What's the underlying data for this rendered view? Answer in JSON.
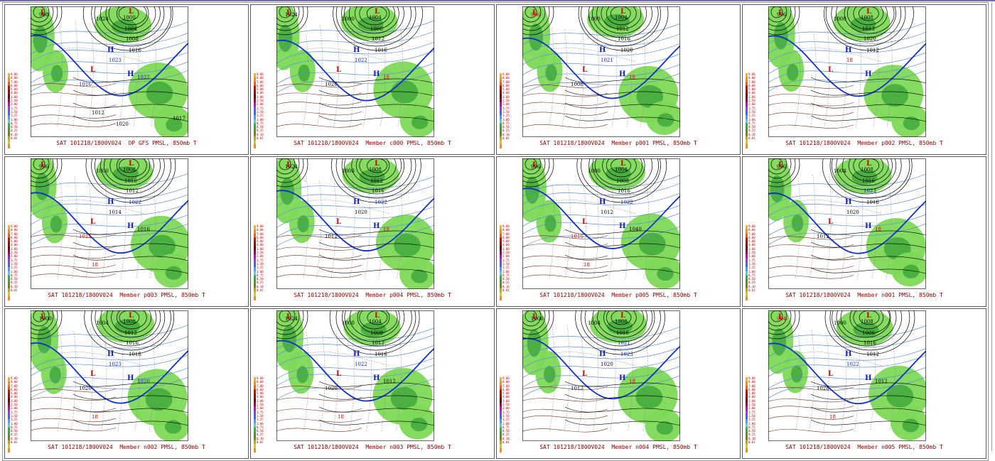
{
  "page": {
    "colors": {
      "caption": "#8b0000",
      "land_green": "#7ed957",
      "land_green_dark": "#3fa83a",
      "isobar": "#000000",
      "isotherm_cold": "#5b8fd6",
      "isotherm_warm": "#7a2a1a",
      "freezing_line": "#1030c8",
      "high_marker": "#1020c0",
      "low_marker": "#d00000"
    }
  },
  "scale": {
    "values": [
      "9.00",
      "8.00",
      "7.00",
      "6.00",
      "5.00",
      "4.00",
      "3.00",
      "2.50",
      "2.00",
      "1.75",
      "1.50",
      "1.25",
      "1.00",
      "0.75",
      "0.50",
      "0.25",
      "0.10",
      "0.01"
    ],
    "colors": [
      "#ffb000",
      "#ff8c00",
      "#ff5a00",
      "#e60000",
      "#b40000",
      "#7a0000",
      "#a0005a",
      "#d000c0",
      "#8040ff",
      "#4060ff",
      "#40a0ff",
      "#40d0ff",
      "#20c020",
      "#40a020",
      "#808000",
      "#b0b000",
      "#d0d000",
      "#ff8c00"
    ]
  },
  "panels": [
    {
      "caption": "SAT 101218/1800V024  OP GFS PMSL, 850mb T",
      "labels": [
        {
          "t": "988",
          "c": "k"
        },
        {
          "t": "1024",
          "c": "k"
        },
        {
          "t": "1000",
          "c": "k"
        },
        {
          "t": "1004",
          "c": "k"
        },
        {
          "t": "1008",
          "c": "k"
        },
        {
          "t": "1016",
          "c": "k"
        },
        {
          "t": "1023",
          "c": "b"
        },
        {
          "t": "1016",
          "c": "b"
        },
        {
          "t": "1022",
          "c": "b"
        },
        {
          "t": "1012",
          "c": "k"
        },
        {
          "t": "1020",
          "c": "k"
        },
        {
          "t": "1017",
          "c": "k"
        }
      ]
    },
    {
      "caption": "SAT 101218/1800V024  Member c000 PMSL, 850mb T",
      "labels": [
        {
          "t": "1024",
          "c": "k"
        },
        {
          "t": "1000",
          "c": "k"
        },
        {
          "t": "1004",
          "c": "k"
        },
        {
          "t": "1008",
          "c": "k"
        },
        {
          "t": "1012",
          "c": "k"
        },
        {
          "t": "1016",
          "c": "k"
        },
        {
          "t": "1022",
          "c": "b"
        },
        {
          "t": "1020",
          "c": "k"
        },
        {
          "t": "18",
          "c": "r"
        }
      ]
    },
    {
      "caption": "SAT 101218/1800V024  Member p001 PMSL, 850mb T",
      "labels": [
        {
          "t": "996",
          "c": "r"
        },
        {
          "t": "1000",
          "c": "k"
        },
        {
          "t": "1004",
          "c": "k"
        },
        {
          "t": "1012",
          "c": "k"
        },
        {
          "t": "1016",
          "c": "k"
        },
        {
          "t": "1020",
          "c": "k"
        },
        {
          "t": "1021",
          "c": "b"
        },
        {
          "t": "1008",
          "c": "k"
        },
        {
          "t": "18",
          "c": "r"
        }
      ]
    },
    {
      "caption": "SAT 101218/1800V024  Member p002 PMSL, 850mb T",
      "labels": [
        {
          "t": "996",
          "c": "k"
        },
        {
          "t": "1000",
          "c": "k"
        },
        {
          "t": "1008",
          "c": "k"
        },
        {
          "t": "1013",
          "c": "k"
        },
        {
          "t": "1020",
          "c": "k"
        },
        {
          "t": "1012",
          "c": "k"
        },
        {
          "t": "18",
          "c": "r"
        }
      ]
    },
    {
      "caption": "SAT 101218/1800V024  Member p003 PMSL, 850mb T",
      "labels": [
        {
          "t": "996",
          "c": "k"
        },
        {
          "t": "1000",
          "c": "k"
        },
        {
          "t": "1008",
          "c": "k"
        },
        {
          "t": "1016",
          "c": "k"
        },
        {
          "t": "1012",
          "c": "k"
        },
        {
          "t": "1022",
          "c": "b"
        },
        {
          "t": "1014",
          "c": "k"
        },
        {
          "t": "1011",
          "c": "r"
        },
        {
          "t": "1016",
          "c": "k"
        },
        {
          "t": "18",
          "c": "r"
        }
      ]
    },
    {
      "caption": "SAT 101218/1800V024  Member p004 PMSL, 850mb T",
      "labels": [
        {
          "t": "1024",
          "c": "k"
        },
        {
          "t": "1000",
          "c": "k"
        },
        {
          "t": "1008",
          "c": "k"
        },
        {
          "t": "1012",
          "c": "k"
        },
        {
          "t": "1016",
          "c": "k"
        },
        {
          "t": "1022",
          "c": "b"
        },
        {
          "t": "1020",
          "c": "k"
        },
        {
          "t": "1012",
          "c": "k"
        },
        {
          "t": "18",
          "c": "r"
        }
      ]
    },
    {
      "caption": "SAT 101218/1800V024  Member p005 PMSL, 850mb T",
      "labels": [
        {
          "t": "996",
          "c": "k"
        },
        {
          "t": "1000",
          "c": "k"
        },
        {
          "t": "1004",
          "c": "k"
        },
        {
          "t": "1008",
          "c": "k"
        },
        {
          "t": "1016",
          "c": "k"
        },
        {
          "t": "1022",
          "c": "b"
        },
        {
          "t": "1012",
          "c": "k"
        },
        {
          "t": "1010",
          "c": "r"
        },
        {
          "t": "1040",
          "c": "k"
        },
        {
          "t": "18",
          "c": "r"
        }
      ]
    },
    {
      "caption": "SAT 101218/1800V024  Member n001 PMSL, 850mb T",
      "labels": [
        {
          "t": "996",
          "c": "k"
        },
        {
          "t": "1004",
          "c": "k"
        },
        {
          "t": "1008",
          "c": "k"
        },
        {
          "t": "1016",
          "c": "k"
        },
        {
          "t": "1023",
          "c": "b"
        },
        {
          "t": "1016",
          "c": "k"
        },
        {
          "t": "1020",
          "c": "k"
        },
        {
          "t": "1012",
          "c": "k"
        },
        {
          "t": "18",
          "c": "r"
        }
      ]
    },
    {
      "caption": "SAT 101218/1800V024  Member n002 PMSL, 850mb T",
      "labels": [
        {
          "t": "1000",
          "c": "k"
        },
        {
          "t": "1004",
          "c": "k"
        },
        {
          "t": "1008",
          "c": "k"
        },
        {
          "t": "1012",
          "c": "k"
        },
        {
          "t": "1016",
          "c": "k"
        },
        {
          "t": "1018",
          "c": "k"
        },
        {
          "t": "1023",
          "c": "b"
        },
        {
          "t": "1020",
          "c": "k"
        },
        {
          "t": "1020",
          "c": "b"
        },
        {
          "t": "18",
          "c": "r"
        }
      ]
    },
    {
      "caption": "SAT 101218/1800V024  Member n003 PMSL, 850mb T",
      "labels": [
        {
          "t": "1024",
          "c": "k"
        },
        {
          "t": "1000",
          "c": "k"
        },
        {
          "t": "1004",
          "c": "k"
        },
        {
          "t": "1008",
          "c": "k"
        },
        {
          "t": "1012",
          "c": "k"
        },
        {
          "t": "1016",
          "c": "k"
        },
        {
          "t": "1022",
          "c": "b"
        },
        {
          "t": "1020",
          "c": "k"
        },
        {
          "t": "1012",
          "c": "k"
        },
        {
          "t": "18",
          "c": "r"
        }
      ]
    },
    {
      "caption": "SAT 101218/1800V024  Member n004 PMSL, 850mb T",
      "labels": [
        {
          "t": "1000",
          "c": "k"
        },
        {
          "t": "1004",
          "c": "k"
        },
        {
          "t": "1008",
          "c": "k"
        },
        {
          "t": "1016",
          "c": "k"
        },
        {
          "t": "1021",
          "c": "b"
        },
        {
          "t": "1023",
          "c": "b"
        },
        {
          "t": "1020",
          "c": "k"
        },
        {
          "t": "1012",
          "c": "k"
        },
        {
          "t": "18",
          "c": "r"
        }
      ]
    },
    {
      "caption": "SAT 101218/1800V024  Member n005 PMSL, 850mb T",
      "labels": [
        {
          "t": "984",
          "c": "r"
        },
        {
          "t": "1000",
          "c": "k"
        },
        {
          "t": "1008",
          "c": "k"
        },
        {
          "t": "1006",
          "c": "k"
        },
        {
          "t": "1016",
          "c": "k"
        },
        {
          "t": "1012",
          "c": "k"
        },
        {
          "t": "1022",
          "c": "b"
        },
        {
          "t": "1028",
          "c": "k"
        },
        {
          "t": "1012",
          "c": "k"
        },
        {
          "t": "18",
          "c": "r"
        }
      ]
    }
  ]
}
